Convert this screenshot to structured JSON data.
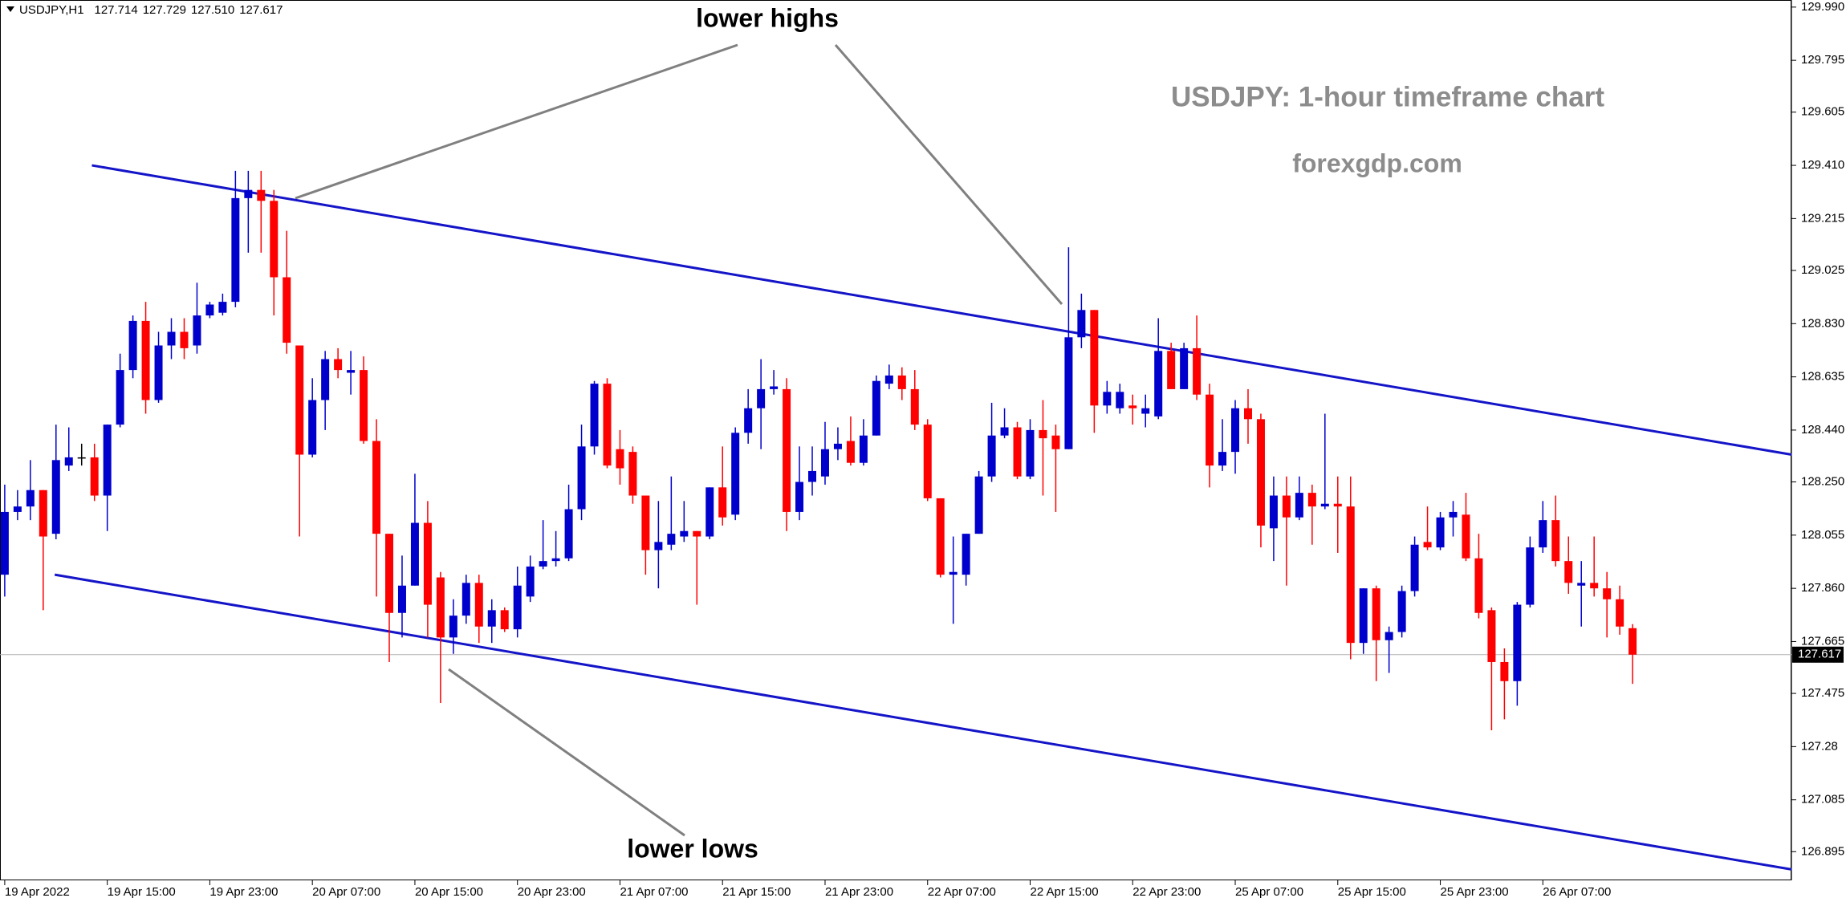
{
  "chart_data": {
    "type": "candlestick",
    "header": {
      "symbol": "USDJPY,H1",
      "ohlc": [
        "127.714",
        "127.729",
        "127.510",
        "127.617"
      ]
    },
    "annotations": {
      "highs": "lower highs",
      "lows": "lower lows",
      "title": "USDJPY: 1-hour timeframe chart",
      "source": "forexgdp.com"
    },
    "categories": [
      "19 Apr 2022",
      null,
      null,
      null,
      null,
      null,
      null,
      null,
      "19 Apr 15:00",
      null,
      null,
      null,
      null,
      null,
      null,
      null,
      "19 Apr 23:00",
      null,
      null,
      null,
      null,
      null,
      null,
      null,
      "20 Apr 07:00",
      null,
      null,
      null,
      null,
      null,
      null,
      null,
      "20 Apr 15:00",
      null,
      null,
      null,
      null,
      null,
      null,
      null,
      "20 Apr 23:00",
      null,
      null,
      null,
      null,
      null,
      null,
      null,
      "21 Apr 07:00",
      null,
      null,
      null,
      null,
      null,
      null,
      null,
      "21 Apr 15:00",
      null,
      null,
      null,
      null,
      null,
      null,
      null,
      "21 Apr 23:00",
      null,
      null,
      null,
      null,
      null,
      null,
      null,
      "22 Apr 07:00",
      null,
      null,
      null,
      null,
      null,
      null,
      null,
      "22 Apr 15:00",
      null,
      null,
      null,
      null,
      null,
      null,
      null,
      "22 Apr 23:00",
      null,
      null,
      null,
      null,
      null,
      null,
      null,
      "25 Apr 07:00",
      null,
      null,
      null,
      null,
      null,
      null,
      null,
      "25 Apr 15:00",
      null,
      null,
      null,
      null,
      null,
      null,
      null,
      "25 Apr 23:00",
      null,
      null,
      null,
      null,
      null,
      null,
      null,
      "26 Apr 07:00",
      null,
      null,
      null,
      null,
      null,
      null,
      null
    ],
    "candles": {
      "open": [
        127.91,
        128.14,
        128.16,
        128.22,
        128.06,
        128.31,
        128.34,
        128.34,
        128.2,
        128.46,
        128.66,
        128.84,
        128.55,
        128.75,
        128.8,
        128.75,
        128.86,
        128.87,
        128.91,
        129.29,
        129.32,
        129.28,
        129.0,
        128.75,
        128.35,
        128.55,
        128.7,
        128.65,
        128.66,
        128.4,
        128.06,
        127.77,
        127.87,
        128.1,
        127.9,
        127.68,
        127.76,
        127.88,
        127.72,
        127.78,
        127.71,
        127.83,
        127.94,
        127.96,
        127.97,
        128.15,
        128.38,
        128.61,
        128.37,
        128.36,
        128.2,
        128.0,
        128.02,
        128.05,
        128.07,
        128.05,
        128.23,
        128.13,
        128.43,
        128.52,
        128.59,
        128.59,
        128.14,
        128.25,
        128.27,
        128.37,
        128.4,
        128.32,
        128.42,
        128.61,
        128.64,
        128.59,
        128.46,
        128.19,
        127.91,
        127.91,
        128.06,
        128.27,
        128.42,
        128.45,
        128.27,
        128.44,
        128.42,
        128.37,
        128.78,
        128.88,
        128.53,
        128.52,
        128.53,
        128.5,
        128.49,
        128.73,
        128.59,
        128.74,
        128.57,
        128.31,
        128.36,
        128.52,
        128.48,
        128.08,
        128.2,
        128.12,
        128.21,
        128.16,
        128.17,
        128.16,
        127.66,
        127.86,
        127.67,
        127.7,
        127.85,
        128.03,
        128.01,
        128.12,
        128.13,
        127.97,
        127.78,
        127.59,
        127.52,
        127.8,
        128.01,
        128.11,
        127.96,
        127.87,
        127.88,
        127.86,
        127.82,
        127.714
      ],
      "high": [
        128.24,
        128.22,
        128.33,
        128.22,
        128.46,
        128.45,
        128.39,
        128.39,
        128.46,
        128.72,
        128.86,
        128.91,
        128.8,
        128.85,
        128.85,
        128.98,
        128.91,
        128.94,
        129.39,
        129.39,
        129.39,
        129.32,
        129.17,
        128.75,
        128.63,
        128.73,
        128.74,
        128.73,
        128.71,
        128.48,
        128.06,
        127.98,
        128.28,
        128.18,
        127.92,
        127.82,
        127.91,
        127.91,
        127.82,
        127.79,
        127.94,
        127.98,
        128.11,
        128.07,
        128.24,
        128.46,
        128.62,
        128.63,
        128.44,
        128.38,
        128.2,
        128.18,
        128.27,
        128.18,
        128.07,
        128.23,
        128.38,
        128.45,
        128.59,
        128.7,
        128.66,
        128.63,
        128.38,
        128.38,
        128.47,
        128.45,
        128.49,
        128.48,
        128.64,
        128.68,
        128.67,
        128.66,
        128.48,
        128.19,
        128.05,
        128.06,
        128.29,
        128.54,
        128.52,
        128.47,
        128.48,
        128.55,
        128.46,
        129.11,
        128.94,
        128.88,
        128.62,
        128.61,
        128.57,
        128.57,
        128.85,
        128.76,
        128.76,
        128.86,
        128.61,
        128.48,
        128.55,
        128.59,
        128.5,
        128.27,
        128.27,
        128.27,
        128.24,
        128.5,
        128.27,
        128.27,
        127.86,
        127.87,
        127.72,
        127.87,
        128.05,
        128.16,
        128.14,
        128.18,
        128.21,
        128.06,
        127.79,
        127.64,
        127.81,
        128.05,
        128.18,
        128.2,
        128.05,
        127.96,
        128.05,
        127.92,
        127.87,
        127.729
      ],
      "low": [
        127.83,
        128.11,
        128.11,
        127.78,
        128.04,
        128.29,
        128.31,
        128.18,
        128.07,
        128.45,
        128.63,
        128.5,
        128.54,
        128.7,
        128.7,
        128.72,
        128.85,
        128.86,
        128.89,
        129.09,
        129.09,
        128.86,
        128.72,
        128.05,
        128.34,
        128.44,
        128.63,
        128.57,
        128.39,
        127.83,
        127.59,
        127.68,
        127.87,
        127.68,
        127.44,
        127.62,
        127.73,
        127.66,
        127.66,
        127.7,
        127.68,
        127.81,
        127.93,
        127.94,
        127.96,
        128.11,
        128.35,
        128.3,
        128.24,
        128.17,
        127.91,
        127.86,
        128.0,
        128.03,
        127.8,
        128.04,
        128.09,
        128.11,
        128.39,
        128.37,
        128.57,
        128.07,
        128.11,
        128.2,
        128.24,
        128.33,
        128.31,
        128.31,
        128.42,
        128.59,
        128.55,
        128.44,
        128.18,
        127.9,
        127.73,
        127.87,
        128.06,
        128.25,
        128.41,
        128.26,
        128.26,
        128.2,
        128.14,
        128.37,
        128.74,
        128.43,
        128.5,
        128.5,
        128.46,
        128.45,
        128.48,
        128.59,
        128.59,
        128.55,
        128.23,
        128.29,
        128.28,
        128.39,
        128.01,
        127.96,
        127.87,
        128.11,
        128.02,
        128.15,
        127.99,
        127.6,
        127.62,
        127.52,
        127.55,
        127.68,
        127.83,
        128.0,
        128.0,
        128.05,
        127.96,
        127.75,
        127.34,
        127.38,
        127.43,
        127.79,
        127.99,
        127.94,
        127.84,
        127.72,
        127.83,
        127.68,
        127.69,
        127.51
      ],
      "close": [
        128.14,
        128.16,
        128.22,
        128.05,
        128.33,
        128.34,
        128.34,
        128.2,
        128.46,
        128.66,
        128.84,
        128.55,
        128.75,
        128.8,
        128.74,
        128.86,
        128.9,
        128.91,
        129.29,
        129.32,
        129.28,
        129.0,
        128.76,
        128.35,
        128.55,
        128.7,
        128.66,
        128.66,
        128.4,
        128.06,
        127.77,
        127.87,
        128.1,
        127.8,
        127.68,
        127.76,
        127.88,
        127.72,
        127.78,
        127.71,
        127.87,
        127.94,
        127.96,
        127.97,
        128.15,
        128.38,
        128.61,
        128.31,
        128.3,
        128.2,
        128.0,
        128.03,
        128.06,
        128.07,
        128.05,
        128.23,
        128.12,
        128.43,
        128.52,
        128.59,
        128.6,
        128.14,
        128.25,
        128.29,
        128.37,
        128.39,
        128.32,
        128.42,
        128.62,
        128.64,
        128.59,
        128.46,
        128.19,
        127.91,
        127.92,
        128.06,
        128.27,
        128.42,
        128.45,
        128.27,
        128.44,
        128.41,
        128.37,
        128.78,
        128.88,
        128.53,
        128.58,
        128.58,
        128.52,
        128.52,
        128.73,
        128.59,
        128.74,
        128.57,
        128.31,
        128.36,
        128.52,
        128.48,
        128.09,
        128.2,
        128.12,
        128.21,
        128.16,
        128.17,
        128.16,
        127.66,
        127.86,
        127.67,
        127.7,
        127.85,
        128.02,
        128.01,
        128.12,
        128.14,
        127.97,
        127.77,
        127.59,
        127.52,
        127.8,
        128.01,
        128.11,
        127.96,
        127.88,
        127.88,
        127.86,
        127.82,
        127.72,
        127.617
      ]
    },
    "up_color": "#0000cd",
    "down_color": "#ff0000",
    "doji_color": "#000000",
    "trendlines": {
      "color": "#1414c8",
      "lines": [
        {
          "x": [
            6.8,
            139.4
          ],
          "y": [
            129.41,
            128.35
          ]
        },
        {
          "x": [
            3.9,
            139.4
          ],
          "y": [
            127.91,
            126.83
          ]
        }
      ]
    },
    "current_price": {
      "value": 127.617,
      "label": "127.617"
    },
    "ylim": [
      126.79,
      130.016
    ],
    "yticks": [
      {
        "value": 129.99,
        "label": "129.990"
      },
      129.795,
      129.605,
      {
        "value": 129.41,
        "label": "129.410"
      },
      129.215,
      129.025,
      {
        "value": 128.83,
        "label": "128.830"
      },
      128.635,
      {
        "value": 128.44,
        "label": "128.440"
      },
      {
        "value": 128.25,
        "label": "128.250"
      },
      128.055,
      {
        "value": 127.86,
        "label": "127.860"
      },
      127.665,
      127.475,
      127.28,
      127.085,
      126.895
    ],
    "grid": false
  }
}
